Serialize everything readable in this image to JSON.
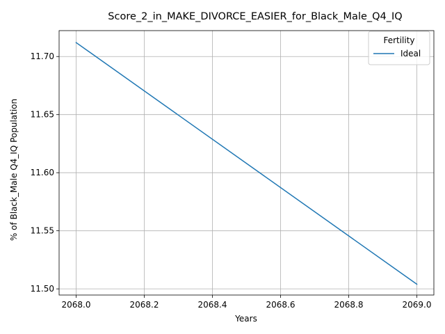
{
  "chart_data": {
    "type": "line",
    "title": "Score_2_in_MAKE_DIVORCE_EASIER_for_Black_Male_Q4_IQ",
    "xlabel": "Years",
    "ylabel": "% of Black_Male Q4_IQ Population",
    "xlim": [
      2067.95,
      2069.05
    ],
    "ylim": [
      11.4947,
      11.7223
    ],
    "xticks": [
      2068.0,
      2068.2,
      2068.4,
      2068.6,
      2068.8,
      2069.0
    ],
    "xtick_labels": [
      "2068.0",
      "2068.2",
      "2068.4",
      "2068.6",
      "2068.8",
      "2069.0"
    ],
    "yticks": [
      11.5,
      11.55,
      11.6,
      11.65,
      11.7
    ],
    "ytick_labels": [
      "11.50",
      "11.55",
      "11.60",
      "11.65",
      "11.70"
    ],
    "grid": true,
    "legend": {
      "title": "Fertility",
      "placement": "top-right"
    },
    "series": [
      {
        "name": "Ideal",
        "color": "#1f77b4",
        "x": [
          2068.0,
          2069.0
        ],
        "y": [
          11.712,
          11.504
        ]
      }
    ]
  }
}
